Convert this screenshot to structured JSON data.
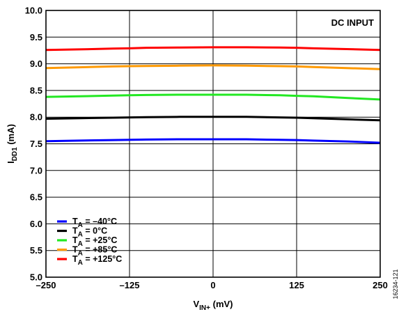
{
  "chart_data": {
    "type": "line",
    "annotation": "DC INPUT",
    "figure_id": "16234-121",
    "xlabel": {
      "main": "V",
      "sub": "IN+",
      "unit": " (mV)"
    },
    "ylabel": {
      "main": "I",
      "sub": "DD1",
      "unit": " (mA)"
    },
    "xlim": [
      -250,
      250
    ],
    "ylim": [
      5.0,
      10.0
    ],
    "x_ticks": [
      -250,
      -125,
      0,
      125,
      250
    ],
    "x_tick_labels": [
      "–250",
      "–125",
      "0",
      "125",
      "250"
    ],
    "y_ticks": [
      5.0,
      5.5,
      6.0,
      6.5,
      7.0,
      7.5,
      8.0,
      8.5,
      9.0,
      9.5,
      10.0
    ],
    "y_tick_labels": [
      "5.0",
      "5.5",
      "6.0",
      "6.5",
      "7.0",
      "7.5",
      "8.0",
      "8.5",
      "9.0",
      "9.5",
      "10.0"
    ],
    "grid": true,
    "legend_position": "bottom-left",
    "x": [
      -250,
      -200,
      -150,
      -125,
      -100,
      -50,
      0,
      50,
      100,
      125,
      150,
      200,
      250
    ],
    "series": [
      {
        "legend_prefix": "T",
        "legend_sub": "A",
        "legend_suffix": " = –40°C",
        "color": "#0000ff",
        "values": [
          7.55,
          7.56,
          7.57,
          7.575,
          7.58,
          7.585,
          7.585,
          7.585,
          7.575,
          7.57,
          7.56,
          7.545,
          7.52
        ]
      },
      {
        "legend_prefix": "T",
        "legend_sub": "A",
        "legend_suffix": " = 0°C",
        "color": "#000000",
        "values": [
          7.97,
          7.98,
          7.99,
          7.995,
          8.0,
          8.005,
          8.005,
          8.005,
          7.995,
          7.99,
          7.98,
          7.96,
          7.94
        ]
      },
      {
        "legend_prefix": "T",
        "legend_sub": "A",
        "legend_suffix": " = +25°C",
        "color": "#22e822",
        "values": [
          8.38,
          8.39,
          8.405,
          8.41,
          8.415,
          8.42,
          8.42,
          8.42,
          8.41,
          8.4,
          8.39,
          8.36,
          8.33
        ]
      },
      {
        "legend_prefix": "T",
        "legend_sub": "A",
        "legend_suffix": " = +85°C",
        "color": "#ff9900",
        "values": [
          8.92,
          8.935,
          8.95,
          8.955,
          8.96,
          8.965,
          8.97,
          8.965,
          8.955,
          8.95,
          8.94,
          8.92,
          8.9
        ]
      },
      {
        "legend_prefix": "T",
        "legend_sub": "A",
        "legend_suffix": " = +125°C",
        "color": "#ff0000",
        "values": [
          9.26,
          9.27,
          9.285,
          9.29,
          9.3,
          9.305,
          9.31,
          9.31,
          9.305,
          9.3,
          9.29,
          9.275,
          9.26
        ]
      }
    ]
  }
}
